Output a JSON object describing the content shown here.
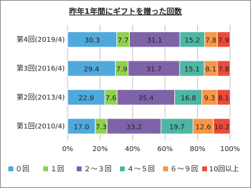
{
  "chart_data": {
    "type": "stacked-bar-horizontal",
    "title": "昨年1年間にギフトを贈った回数",
    "categories": [
      "第4回(2019/4)",
      "第3回(2016/4)",
      "第2回(2013/4)",
      "第1回(2010/4)"
    ],
    "series": [
      {
        "name": "０回",
        "color": "#4fa9dc",
        "values": [
          30.3,
          29.4,
          22.9,
          17.0
        ],
        "value_labels": [
          "30.3",
          "29.4",
          "22.9",
          "17.0"
        ]
      },
      {
        "name": "１回",
        "color": "#92d050",
        "values": [
          7.7,
          7.9,
          7.6,
          7.3
        ],
        "value_labels": [
          "7.7",
          "7.9",
          "7.6",
          "7.3"
        ]
      },
      {
        "name": "２～３回",
        "color": "#7f63a8",
        "values": [
          31.1,
          31.7,
          35.4,
          33.2
        ],
        "value_labels": [
          "31.1",
          "31.7",
          "35.4",
          "33.2"
        ]
      },
      {
        "name": "４～５回",
        "color": "#4db6a4",
        "values": [
          15.2,
          15.1,
          16.8,
          19.7
        ],
        "value_labels": [
          "15.2",
          "15.1",
          "16.8",
          "19.7"
        ]
      },
      {
        "name": "６～９回",
        "color": "#f79646",
        "values": [
          7.8,
          8.1,
          9.3,
          12.6
        ],
        "value_labels": [
          "7.8",
          "8.1",
          "9.3",
          "12.6"
        ]
      },
      {
        "name": "10回以上",
        "color": "#ea4b3c",
        "values": [
          7.9,
          7.8,
          8.1,
          10.2
        ],
        "value_labels": [
          "7.9",
          "7.8",
          "8.1",
          "10.2"
        ]
      }
    ],
    "xlim": [
      0,
      100
    ],
    "xticks": [
      {
        "value": 0,
        "label": "0%"
      },
      {
        "value": 20,
        "label": "20%"
      },
      {
        "value": 40,
        "label": "40%"
      },
      {
        "value": 60,
        "label": "60%"
      },
      {
        "value": 80,
        "label": "80%"
      },
      {
        "value": 100,
        "label": "100%"
      }
    ],
    "grid": true,
    "legend": "bottom"
  }
}
